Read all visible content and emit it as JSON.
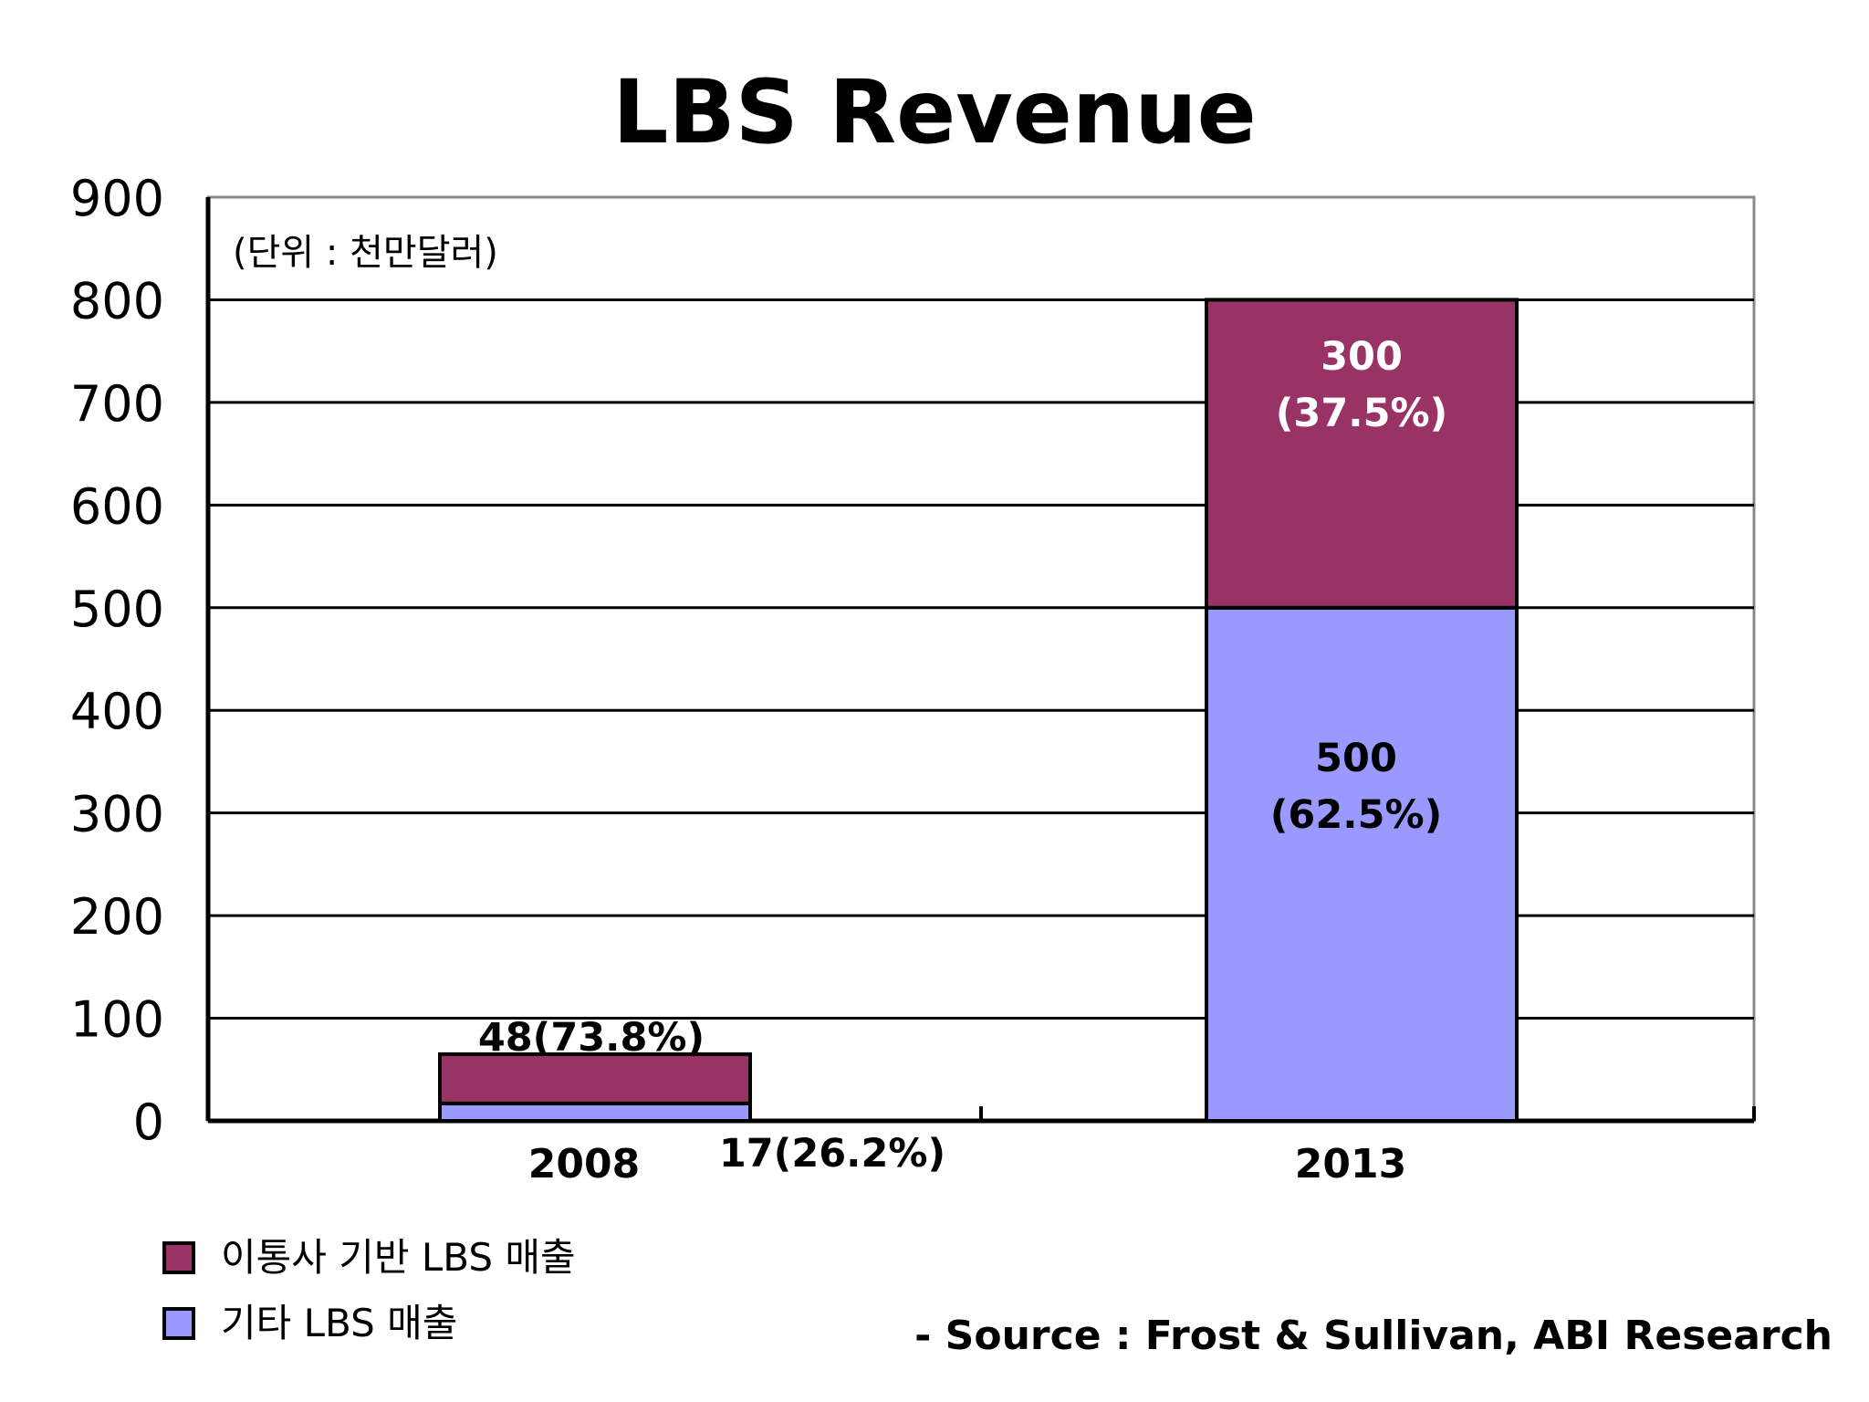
{
  "chart_data": {
    "type": "bar",
    "stacked": true,
    "title": "LBS Revenue",
    "unit_note": "(단위 : 천만달러)",
    "categories": [
      "2008",
      "2013"
    ],
    "series": [
      {
        "name": "기타 LBS 매출",
        "color": "#9999ff",
        "values": [
          17,
          500
        ],
        "labels": [
          "17(26.2%)",
          "500\n(62.5%)"
        ],
        "label_color": "#000000"
      },
      {
        "name": "이통사 기반 LBS 매출",
        "color": "#993366",
        "values": [
          48,
          300
        ],
        "labels": [
          "48(73.8%)",
          "300\n(37.5%)"
        ],
        "label_color": "#ffffff"
      }
    ],
    "ylim": [
      0,
      900
    ],
    "yticks": [
      0,
      100,
      200,
      300,
      400,
      500,
      600,
      700,
      800,
      900
    ],
    "grid": true,
    "legend_position": "bottom-left",
    "legend_order": [
      "이통사 기반 LBS 매출",
      "기타 LBS 매출"
    ],
    "xlabel": "",
    "ylabel": ""
  },
  "source_note": "- Source : Frost & Sullivan, ABI Research"
}
